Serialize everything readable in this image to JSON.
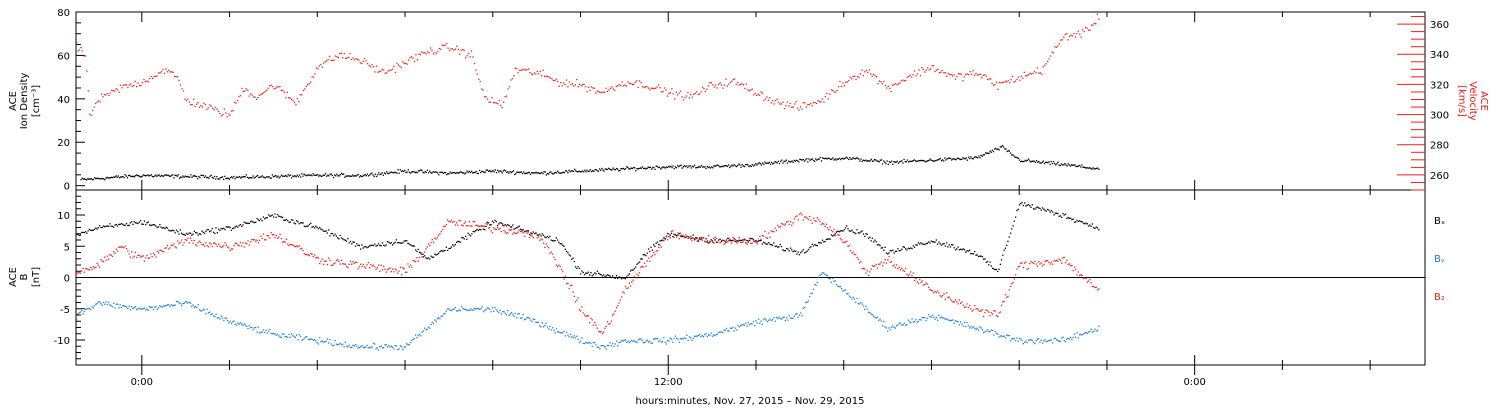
{
  "xaxis": {
    "label": "hours:minutes, Nov. 27, 2015 – Nov. 29, 2015",
    "range_hours": [
      -1.5,
      29.25
    ],
    "major_ticks": [
      {
        "t": 0,
        "label": "0:00"
      },
      {
        "t": 12,
        "label": "12:00"
      },
      {
        "t": 24,
        "label": "0:00"
      }
    ],
    "minor_tick_step_hours": 2
  },
  "colors": {
    "black": "#000000",
    "red": "#e8201c",
    "blue": "#1e7fd7"
  },
  "chart_data": [
    {
      "type": "scatter",
      "panel": "top",
      "left_axis": {
        "label_lines": [
          "ACE",
          "Ion Density",
          "[cm⁻³]"
        ],
        "range": [
          -2,
          80
        ],
        "ticks": [
          0,
          20,
          40,
          60,
          80
        ],
        "minor_step": 5
      },
      "right_axis": {
        "label_lines": [
          "ACE",
          "Velocity",
          "[km/s]"
        ],
        "range": [
          250,
          368
        ],
        "ticks": [
          260,
          280,
          300,
          320,
          340,
          360
        ],
        "minor_step": 5,
        "color": "#e8201c"
      },
      "series": [
        {
          "axis": "left",
          "color": "#000000",
          "x": [
            -1.4,
            0,
            2,
            4,
            5,
            6,
            7,
            8,
            9,
            10,
            11,
            12,
            13,
            14,
            15,
            16,
            17,
            18,
            19,
            19.6,
            20,
            21,
            21.8
          ],
          "y": [
            3,
            5,
            4,
            5,
            5,
            7,
            6,
            7,
            6,
            7,
            8,
            9,
            9,
            10,
            12,
            13,
            11,
            12,
            13,
            18,
            12,
            10,
            8
          ]
        },
        {
          "axis": "right",
          "color": "#e8201c",
          "x": [
            -1.5,
            -1.3,
            -1.2,
            -1.0,
            -0.5,
            0,
            0.5,
            0.8,
            1,
            1.5,
            2,
            2.3,
            2.6,
            3,
            3.5,
            4,
            4.5,
            5,
            5.5,
            6,
            6.5,
            7,
            7.5,
            7.8,
            8.2,
            8.5,
            9,
            9.5,
            10,
            10.5,
            11,
            11.5,
            12,
            12.5,
            13,
            13.5,
            14,
            14.5,
            15,
            15.5,
            16,
            16.5,
            17,
            17.5,
            18,
            18.5,
            19,
            19.5,
            20,
            20.5,
            21,
            21.5,
            21.8
          ],
          "y": [
            345,
            340,
            300,
            310,
            318,
            322,
            330,
            325,
            310,
            305,
            300,
            318,
            312,
            320,
            308,
            332,
            340,
            336,
            328,
            335,
            342,
            345,
            340,
            312,
            306,
            330,
            328,
            322,
            320,
            315,
            322,
            320,
            315,
            312,
            320,
            322,
            315,
            308,
            305,
            310,
            322,
            330,
            318,
            326,
            332,
            325,
            328,
            320,
            325,
            330,
            352,
            355,
            365
          ]
        }
      ]
    },
    {
      "type": "scatter",
      "panel": "bottom",
      "left_axis": {
        "label_lines": [
          "ACE",
          "B",
          "[nT]"
        ],
        "range": [
          -14,
          14
        ],
        "ticks": [
          -10,
          -5,
          0,
          5,
          10
        ],
        "minor_step": 1
      },
      "zero_line": true,
      "legend": [
        "Bₓ",
        "Bᵧ",
        "B₂"
      ],
      "series": [
        {
          "name": "Bₓ",
          "color": "#000000",
          "x": [
            -1.5,
            -1,
            0,
            1,
            2,
            3,
            4,
            5,
            6,
            6.5,
            7,
            8,
            9,
            9.5,
            10,
            11,
            11.5,
            12,
            13,
            14,
            15,
            16,
            16.5,
            17,
            18,
            19,
            19.5,
            20,
            21,
            21.8
          ],
          "y": [
            7,
            8,
            9,
            7,
            8,
            10,
            8,
            5,
            6,
            3,
            5,
            9,
            7,
            6,
            1,
            0,
            4,
            7,
            6,
            6,
            4,
            8,
            7,
            4,
            6,
            4,
            1,
            12,
            10,
            8
          ]
        },
        {
          "name": "Bᵧ",
          "color": "#1e7fd7",
          "x": [
            -1.5,
            -1,
            0,
            1,
            2,
            3,
            4,
            5,
            6,
            7,
            8,
            9,
            10,
            10.5,
            11,
            12,
            13,
            14,
            15,
            15.5,
            16,
            16.5,
            17,
            18,
            19,
            20,
            21,
            21.8
          ],
          "y": [
            -6,
            -4,
            -5,
            -4,
            -7,
            -9,
            -10,
            -11,
            -11,
            -5,
            -5,
            -7,
            -10,
            -11,
            -10,
            -10,
            -9,
            -7,
            -6,
            1,
            -2,
            -5,
            -8,
            -6,
            -8,
            -10,
            -10,
            -8
          ]
        },
        {
          "name": "B₂",
          "color": "#e8201c",
          "x": [
            -1.5,
            -1,
            -0.5,
            0,
            1,
            2,
            3,
            4,
            5,
            6,
            7,
            8,
            9,
            9.5,
            10,
            10.5,
            11,
            12,
            13,
            14,
            15,
            15.5,
            16,
            16.5,
            17,
            18,
            19,
            19.5,
            20,
            21,
            21.8
          ],
          "y": [
            1,
            2,
            5,
            3,
            6,
            5,
            7,
            3,
            2,
            1,
            9,
            8,
            7,
            2,
            -5,
            -9,
            -2,
            7,
            6,
            6,
            10,
            9,
            6,
            1,
            3,
            -2,
            -5,
            -6,
            2,
            3,
            -2
          ]
        }
      ]
    }
  ]
}
